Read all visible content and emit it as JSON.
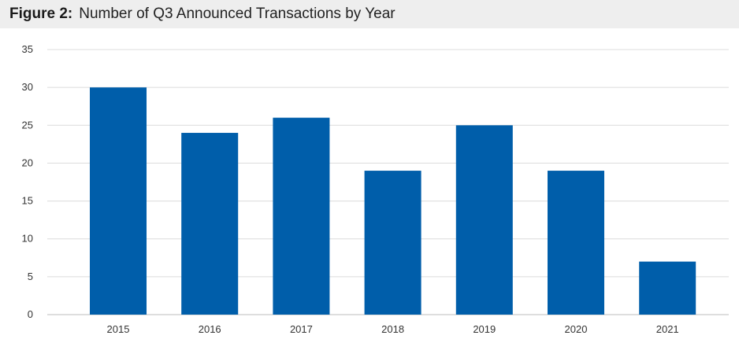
{
  "title": {
    "prefix": "Figure 2:",
    "text": "Number of Q3 Announced Transactions by Year"
  },
  "colors": {
    "bar": "#005eaa",
    "title_background": "#eeeeee"
  },
  "chart_data": {
    "type": "bar",
    "title": "Figure 2: Number of Q3 Announced Transactions by Year",
    "xlabel": "",
    "ylabel": "",
    "categories": [
      "2015",
      "2016",
      "2017",
      "2018",
      "2019",
      "2020",
      "2021"
    ],
    "values": [
      30,
      24,
      26,
      19,
      25,
      19,
      7
    ],
    "ylim": [
      0,
      35
    ],
    "yticks": [
      0,
      5,
      10,
      15,
      20,
      25,
      30,
      35
    ],
    "grid": true,
    "legend": "none"
  }
}
